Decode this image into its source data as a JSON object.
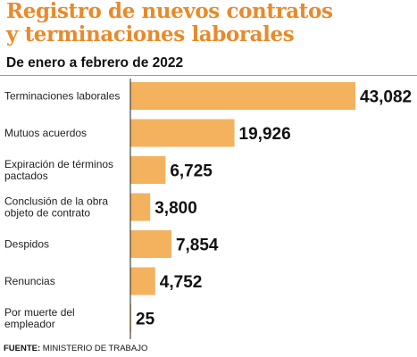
{
  "chart_data": {
    "type": "bar",
    "orientation": "horizontal",
    "title_lines": [
      "Registro de nuevos contratos",
      "y terminaciones laborales"
    ],
    "subtitle": "De enero a febrero de 2022",
    "categories": [
      [
        "Terminaciones laborales"
      ],
      [
        "Mutuos acuerdos"
      ],
      [
        "Expiración de términos",
        "pactados"
      ],
      [
        "Conclusión de la obra",
        "objeto de contrato"
      ],
      [
        "Despidos"
      ],
      [
        "Renuncias"
      ],
      [
        "Por muerte del",
        "empleador"
      ]
    ],
    "values": [
      43082,
      19926,
      6725,
      3800,
      7854,
      4752,
      25
    ],
    "value_labels": [
      "43,082",
      "19,926",
      "6,725",
      "3,800",
      "7,854",
      "4,752",
      "25"
    ],
    "bar_color": "#f4b25e",
    "grid": false,
    "legend": false
  },
  "source": {
    "label": "FUENTE:",
    "text": " MINISTERIO DE TRABAJO"
  }
}
